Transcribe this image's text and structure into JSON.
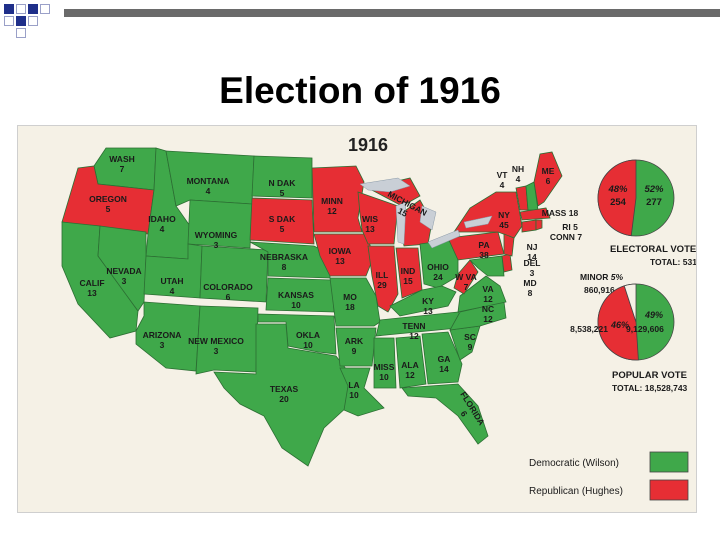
{
  "slide": {
    "title": "Election of 1916"
  },
  "map": {
    "year": "1916",
    "states": {
      "wash": {
        "name": "WASH",
        "votes": "7",
        "party": "D"
      },
      "oregon": {
        "name": "OREGON",
        "votes": "5",
        "party": "R"
      },
      "calif": {
        "name": "CALIF",
        "votes": "13",
        "party": "D"
      },
      "idaho": {
        "name": "IDAHO",
        "votes": "4",
        "party": "D"
      },
      "nevada": {
        "name": "NEVADA",
        "votes": "3",
        "party": "D"
      },
      "montana": {
        "name": "MONTANA",
        "votes": "4",
        "party": "D"
      },
      "wyoming": {
        "name": "WYOMING",
        "votes": "3",
        "party": "D"
      },
      "utah": {
        "name": "UTAH",
        "votes": "4",
        "party": "D"
      },
      "colorado": {
        "name": "COLORADO",
        "votes": "6",
        "party": "D"
      },
      "arizona": {
        "name": "ARIZONA",
        "votes": "3",
        "party": "D"
      },
      "new_mexico": {
        "name": "NEW MEXICO",
        "votes": "3",
        "party": "D"
      },
      "n_dak": {
        "name": "N DAK",
        "votes": "5",
        "party": "D"
      },
      "s_dak": {
        "name": "S DAK",
        "votes": "5",
        "party": "R"
      },
      "nebraska": {
        "name": "NEBRASKA",
        "votes": "8",
        "party": "D"
      },
      "kansas": {
        "name": "KANSAS",
        "votes": "10",
        "party": "D"
      },
      "okla": {
        "name": "OKLA",
        "votes": "10",
        "party": "D"
      },
      "texas": {
        "name": "TEXAS",
        "votes": "20",
        "party": "D"
      },
      "minn": {
        "name": "MINN",
        "votes": "12",
        "party": "R"
      },
      "iowa": {
        "name": "IOWA",
        "votes": "13",
        "party": "R"
      },
      "mo": {
        "name": "MO",
        "votes": "18",
        "party": "D"
      },
      "ark": {
        "name": "ARK",
        "votes": "9",
        "party": "D"
      },
      "la": {
        "name": "LA",
        "votes": "10",
        "party": "D"
      },
      "wis": {
        "name": "WIS",
        "votes": "13",
        "party": "R"
      },
      "ill": {
        "name": "ILL",
        "votes": "29",
        "party": "R"
      },
      "michigan": {
        "name": "MICHIGAN",
        "votes": "15",
        "party": "R"
      },
      "ind": {
        "name": "IND",
        "votes": "15",
        "party": "R"
      },
      "ohio": {
        "name": "OHIO",
        "votes": "24",
        "party": "D"
      },
      "ky": {
        "name": "KY",
        "votes": "13",
        "party": "D"
      },
      "tenn": {
        "name": "TENN",
        "votes": "12",
        "party": "D"
      },
      "miss": {
        "name": "MISS",
        "votes": "10",
        "party": "D"
      },
      "ala": {
        "name": "ALA",
        "votes": "12",
        "party": "D"
      },
      "ga": {
        "name": "GA",
        "votes": "14",
        "party": "D"
      },
      "florida": {
        "name": "FLORIDA",
        "votes": "6",
        "party": "D"
      },
      "sc": {
        "name": "SC",
        "votes": "9",
        "party": "D"
      },
      "nc": {
        "name": "NC",
        "votes": "12",
        "party": "D"
      },
      "va": {
        "name": "VA",
        "votes": "12",
        "party": "D"
      },
      "w_va": {
        "name": "W VA",
        "votes": "7",
        "party": "R"
      },
      "md": {
        "name": "MD",
        "votes": "8",
        "party": "D"
      },
      "del": {
        "name": "DEL",
        "votes": "3",
        "party": "R"
      },
      "pa": {
        "name": "PA",
        "votes": "38",
        "party": "R"
      },
      "ny": {
        "name": "NY",
        "votes": "45",
        "party": "R"
      },
      "nj": {
        "name": "NJ",
        "votes": "14",
        "party": "R"
      },
      "vt": {
        "name": "VT",
        "votes": "4",
        "party": "R"
      },
      "nh": {
        "name": "NH",
        "votes": "4",
        "party": "D"
      },
      "me": {
        "name": "ME",
        "votes": "6",
        "party": "R"
      },
      "mass": {
        "name": "MASS",
        "votes": "18",
        "party": "R"
      },
      "ri": {
        "name": "RI",
        "votes": "5",
        "party": "R"
      },
      "conn": {
        "name": "CONN",
        "votes": "7",
        "party": "R"
      }
    },
    "electoral_vote": {
      "title": "ELECTORAL VOTE",
      "total_label": "TOTAL: 531",
      "republican_pct": "48%",
      "republican_votes": "254",
      "democratic_pct": "52%",
      "democratic_votes": "277",
      "republican_share": 0.48
    },
    "popular_vote": {
      "title": "POPULAR VOTE",
      "total_label": "TOTAL: 18,528,743",
      "minor_label": "MINOR",
      "minor_pct": "5%",
      "minor_votes": "860,916",
      "republican_pct": "46%",
      "republican_votes": "8,538,221",
      "democratic_pct": "49%",
      "democratic_votes": "9,129,606",
      "republican_share": 0.46,
      "minor_share": 0.05
    },
    "legend": {
      "democratic": "Democratic (Wilson)",
      "republican": "Republican (Hughes)"
    },
    "colors": {
      "democratic": "#3fa84a",
      "republican": "#e62e34",
      "minor": "#f5f1e6",
      "water": "#c9cfd6",
      "background": "#f5f1e6"
    }
  }
}
